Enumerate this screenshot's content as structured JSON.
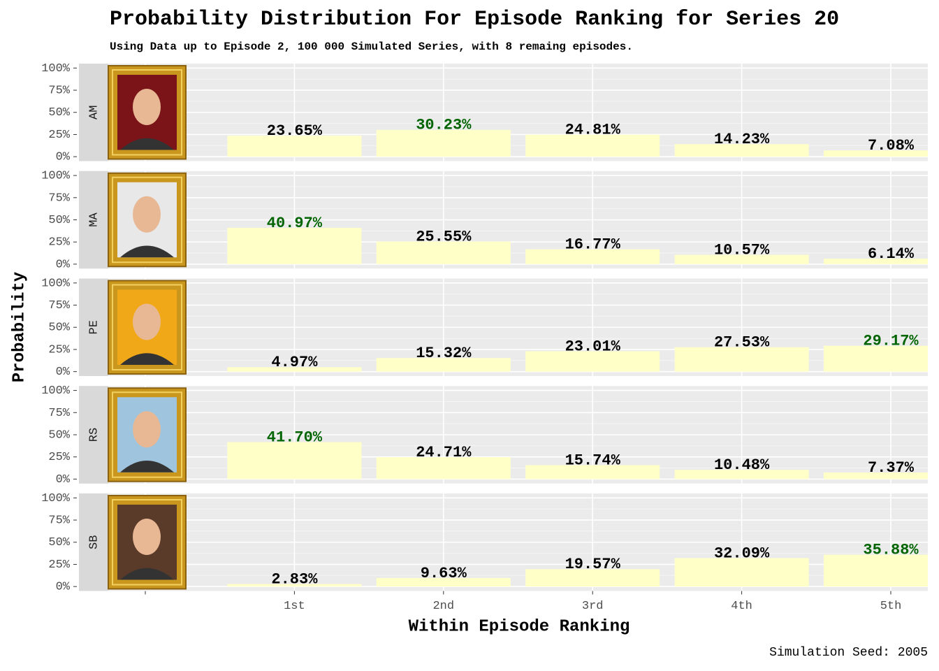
{
  "chart_data": {
    "type": "bar",
    "title": "Probability Distribution For Episode Ranking for Series 20",
    "subtitle": "Using Data up to Episode 2, 100 000 Simulated Series, with 8 remaing episodes.",
    "x_label": "Within Episode Ranking",
    "y_label": "Probability",
    "caption": "Simulation Seed: 2005",
    "categories": [
      null,
      "1st",
      "2nd",
      "3rd",
      "4th",
      "5th"
    ],
    "ylim": [
      -5,
      105
    ],
    "yticks": [
      {
        "value": 0,
        "label": "0%"
      },
      {
        "value": 25,
        "label": "25%"
      },
      {
        "value": 50,
        "label": "50%"
      },
      {
        "value": 75,
        "label": "75%"
      },
      {
        "value": 100,
        "label": "100%"
      }
    ],
    "grid": true,
    "color": "#ffffc8",
    "label_color": "#000000",
    "highlight_color": "#006400",
    "facets": [
      {
        "name": "AM",
        "values": [
          null,
          23.65,
          30.23,
          24.81,
          14.23,
          7.08
        ],
        "value_labels": [
          null,
          "23.65%",
          "30.23%",
          "24.81%",
          "14.23%",
          "7.08%"
        ]
      },
      {
        "name": "MA",
        "values": [
          null,
          40.97,
          25.55,
          16.77,
          10.57,
          6.14
        ],
        "value_labels": [
          null,
          "40.97%",
          "25.55%",
          "16.77%",
          "10.57%",
          "6.14%"
        ]
      },
      {
        "name": "PE",
        "values": [
          null,
          4.97,
          15.32,
          23.01,
          27.53,
          29.17
        ],
        "value_labels": [
          null,
          "4.97%",
          "15.32%",
          "23.01%",
          "27.53%",
          "29.17%"
        ]
      },
      {
        "name": "RS",
        "values": [
          null,
          41.7,
          24.71,
          15.74,
          10.48,
          7.37
        ],
        "value_labels": [
          null,
          "41.70%",
          "24.71%",
          "15.74%",
          "10.48%",
          "7.37%"
        ]
      },
      {
        "name": "SB",
        "values": [
          null,
          2.83,
          9.63,
          19.57,
          32.09,
          35.88
        ],
        "value_labels": [
          null,
          "2.83%",
          "9.63%",
          "19.57%",
          "32.09%",
          "35.88%"
        ]
      }
    ]
  }
}
